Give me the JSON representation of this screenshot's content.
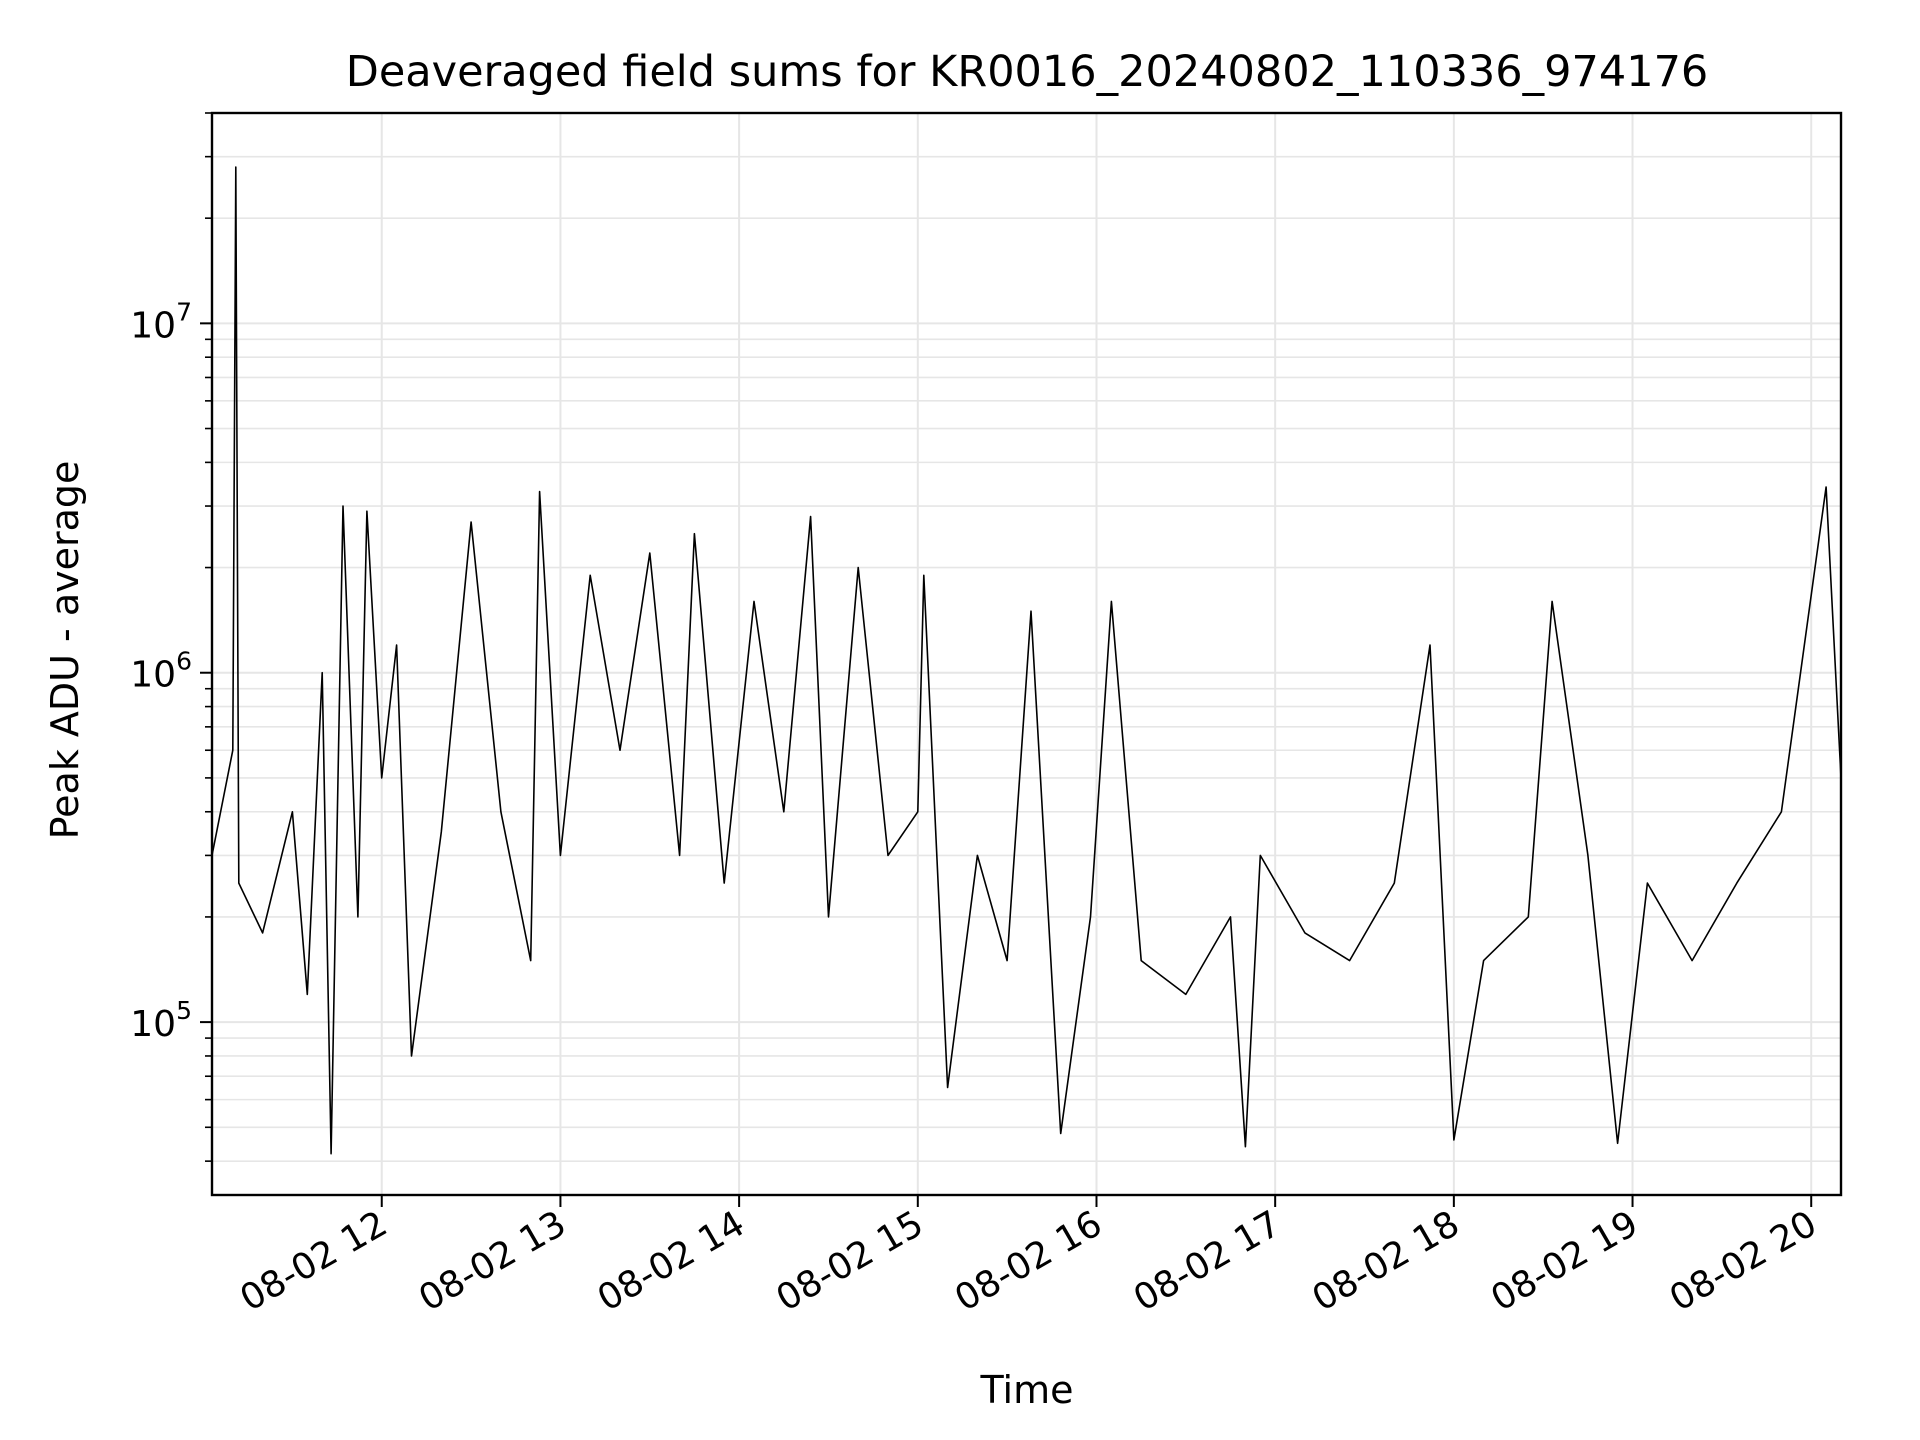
{
  "chart_data": {
    "type": "line",
    "title": "Deaveraged field sums for KR0016_20240802_110336_974176",
    "xlabel": "Time",
    "ylabel": "Peak ADU - average",
    "y_scale": "log",
    "grid": true,
    "line_color": "#000000",
    "grid_color": "#e6e6e6",
    "x_range": [
      "2024-08-02 11:03",
      "2024-08-02 20:10"
    ],
    "ylim": [
      32000,
      40000000
    ],
    "x_ticks": [
      {
        "t": "2024-08-02 12:00",
        "label": "08-02 12"
      },
      {
        "t": "2024-08-02 13:00",
        "label": "08-02 13"
      },
      {
        "t": "2024-08-02 14:00",
        "label": "08-02 14"
      },
      {
        "t": "2024-08-02 15:00",
        "label": "08-02 15"
      },
      {
        "t": "2024-08-02 16:00",
        "label": "08-02 16"
      },
      {
        "t": "2024-08-02 17:00",
        "label": "08-02 17"
      },
      {
        "t": "2024-08-02 18:00",
        "label": "08-02 18"
      },
      {
        "t": "2024-08-02 19:00",
        "label": "08-02 19"
      },
      {
        "t": "2024-08-02 20:00",
        "label": "08-02 20"
      }
    ],
    "y_ticks": [
      {
        "value": 100000,
        "base": "10",
        "exp": "5"
      },
      {
        "value": 1000000,
        "base": "10",
        "exp": "6"
      },
      {
        "value": 10000000,
        "base": "10",
        "exp": "7"
      }
    ],
    "series": [
      {
        "points": [
          [
            "2024-08-02 11:03",
            300000
          ],
          [
            "2024-08-02 11:10",
            600000
          ],
          [
            "2024-08-02 11:11",
            28000000
          ],
          [
            "2024-08-02 11:12",
            250000
          ],
          [
            "2024-08-02 11:20",
            180000
          ],
          [
            "2024-08-02 11:30",
            400000
          ],
          [
            "2024-08-02 11:35",
            120000
          ],
          [
            "2024-08-02 11:40",
            1000000
          ],
          [
            "2024-08-02 11:43",
            42000
          ],
          [
            "2024-08-02 11:47",
            3000000
          ],
          [
            "2024-08-02 11:52",
            200000
          ],
          [
            "2024-08-02 11:55",
            2900000
          ],
          [
            "2024-08-02 12:00",
            500000
          ],
          [
            "2024-08-02 12:05",
            1200000
          ],
          [
            "2024-08-02 12:10",
            80000
          ],
          [
            "2024-08-02 12:20",
            350000
          ],
          [
            "2024-08-02 12:30",
            2700000
          ],
          [
            "2024-08-02 12:40",
            400000
          ],
          [
            "2024-08-02 12:50",
            150000
          ],
          [
            "2024-08-02 12:53",
            3300000
          ],
          [
            "2024-08-02 13:00",
            300000
          ],
          [
            "2024-08-02 13:10",
            1900000
          ],
          [
            "2024-08-02 13:20",
            600000
          ],
          [
            "2024-08-02 13:30",
            2200000
          ],
          [
            "2024-08-02 13:40",
            300000
          ],
          [
            "2024-08-02 13:45",
            2500000
          ],
          [
            "2024-08-02 13:55",
            250000
          ],
          [
            "2024-08-02 14:05",
            1600000
          ],
          [
            "2024-08-02 14:15",
            400000
          ],
          [
            "2024-08-02 14:24",
            2800000
          ],
          [
            "2024-08-02 14:30",
            200000
          ],
          [
            "2024-08-02 14:40",
            2000000
          ],
          [
            "2024-08-02 14:50",
            300000
          ],
          [
            "2024-08-02 15:00",
            400000
          ],
          [
            "2024-08-02 15:02",
            1900000
          ],
          [
            "2024-08-02 15:10",
            65000
          ],
          [
            "2024-08-02 15:20",
            300000
          ],
          [
            "2024-08-02 15:30",
            150000
          ],
          [
            "2024-08-02 15:38",
            1500000
          ],
          [
            "2024-08-02 15:48",
            48000
          ],
          [
            "2024-08-02 15:58",
            200000
          ],
          [
            "2024-08-02 16:05",
            1600000
          ],
          [
            "2024-08-02 16:15",
            150000
          ],
          [
            "2024-08-02 16:30",
            120000
          ],
          [
            "2024-08-02 16:45",
            200000
          ],
          [
            "2024-08-02 16:50",
            44000
          ],
          [
            "2024-08-02 16:55",
            300000
          ],
          [
            "2024-08-02 17:10",
            180000
          ],
          [
            "2024-08-02 17:25",
            150000
          ],
          [
            "2024-08-02 17:40",
            250000
          ],
          [
            "2024-08-02 17:52",
            1200000
          ],
          [
            "2024-08-02 18:00",
            46000
          ],
          [
            "2024-08-02 18:10",
            150000
          ],
          [
            "2024-08-02 18:25",
            200000
          ],
          [
            "2024-08-02 18:33",
            1600000
          ],
          [
            "2024-08-02 18:45",
            300000
          ],
          [
            "2024-08-02 18:55",
            45000
          ],
          [
            "2024-08-02 19:05",
            250000
          ],
          [
            "2024-08-02 19:20",
            150000
          ],
          [
            "2024-08-02 19:35",
            250000
          ],
          [
            "2024-08-02 19:50",
            400000
          ],
          [
            "2024-08-02 20:05",
            3400000
          ],
          [
            "2024-08-02 20:10",
            500000
          ]
        ]
      }
    ]
  }
}
